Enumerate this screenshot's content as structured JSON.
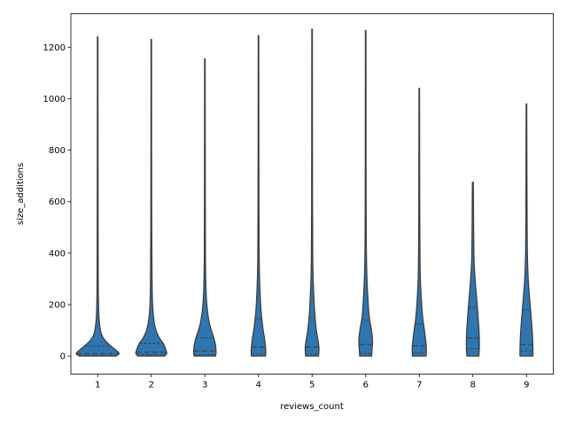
{
  "chart_data": {
    "type": "violin",
    "title": "",
    "xlabel": "reviews_count",
    "ylabel": "size_additions",
    "categories": [
      "1",
      "2",
      "3",
      "4",
      "5",
      "6",
      "7",
      "8",
      "9"
    ],
    "ylim": [
      -70,
      1330
    ],
    "yticks": [
      0,
      200,
      400,
      600,
      800,
      1000,
      1200
    ],
    "ytick_labels": [
      "0",
      "200",
      "400",
      "600",
      "800",
      "1000",
      "1200"
    ],
    "grid": false,
    "inner": "quartile",
    "cut": 0,
    "color": "#2f75b0",
    "edge_color": "#3f3f3f",
    "violins": [
      {
        "category": "1",
        "min": 0,
        "max": 1240,
        "q1": 3,
        "median": 10,
        "q3": 38,
        "profile": [
          [
            0,
            0.85
          ],
          [
            10,
            1.0
          ],
          [
            25,
            0.82
          ],
          [
            40,
            0.6
          ],
          [
            60,
            0.35
          ],
          [
            80,
            0.2
          ],
          [
            100,
            0.13
          ],
          [
            140,
            0.07
          ],
          [
            200,
            0.04
          ],
          [
            300,
            0.025
          ],
          [
            500,
            0.02
          ],
          [
            800,
            0.015
          ],
          [
            1240,
            0.012
          ]
        ]
      },
      {
        "category": "2",
        "min": 0,
        "max": 1230,
        "q1": 5,
        "median": 15,
        "q3": 50,
        "profile": [
          [
            0,
            0.62
          ],
          [
            10,
            0.72
          ],
          [
            25,
            0.68
          ],
          [
            50,
            0.55
          ],
          [
            70,
            0.38
          ],
          [
            100,
            0.22
          ],
          [
            140,
            0.12
          ],
          [
            200,
            0.06
          ],
          [
            300,
            0.035
          ],
          [
            500,
            0.02
          ],
          [
            800,
            0.015
          ],
          [
            1230,
            0.012
          ]
        ]
      },
      {
        "category": "3",
        "min": 0,
        "max": 1155,
        "q1": 5,
        "median": 20,
        "q3": 70,
        "profile": [
          [
            0,
            0.5
          ],
          [
            15,
            0.52
          ],
          [
            40,
            0.5
          ],
          [
            70,
            0.42
          ],
          [
            100,
            0.3
          ],
          [
            140,
            0.18
          ],
          [
            200,
            0.09
          ],
          [
            280,
            0.045
          ],
          [
            400,
            0.025
          ],
          [
            700,
            0.018
          ],
          [
            1155,
            0.012
          ]
        ]
      },
      {
        "category": "4",
        "min": 0,
        "max": 1245,
        "q1": 8,
        "median": 35,
        "q3": 145,
        "profile": [
          [
            0,
            0.33
          ],
          [
            20,
            0.34
          ],
          [
            40,
            0.32
          ],
          [
            70,
            0.28
          ],
          [
            100,
            0.22
          ],
          [
            150,
            0.15
          ],
          [
            200,
            0.1
          ],
          [
            300,
            0.05
          ],
          [
            400,
            0.03
          ],
          [
            600,
            0.02
          ],
          [
            1000,
            0.015
          ],
          [
            1245,
            0.012
          ]
        ]
      },
      {
        "category": "5",
        "min": 0,
        "max": 1270,
        "q1": 8,
        "median": 35,
        "q3": 150,
        "profile": [
          [
            0,
            0.3
          ],
          [
            30,
            0.32
          ],
          [
            60,
            0.28
          ],
          [
            100,
            0.2
          ],
          [
            150,
            0.14
          ],
          [
            200,
            0.1
          ],
          [
            300,
            0.05
          ],
          [
            400,
            0.03
          ],
          [
            600,
            0.02
          ],
          [
            1000,
            0.015
          ],
          [
            1270,
            0.012
          ]
        ]
      },
      {
        "category": "6",
        "min": 0,
        "max": 1265,
        "q1": 10,
        "median": 45,
        "q3": 140,
        "profile": [
          [
            0,
            0.28
          ],
          [
            30,
            0.3
          ],
          [
            60,
            0.32
          ],
          [
            100,
            0.27
          ],
          [
            150,
            0.17
          ],
          [
            200,
            0.12
          ],
          [
            300,
            0.06
          ],
          [
            420,
            0.03
          ],
          [
            600,
            0.02
          ],
          [
            1000,
            0.015
          ],
          [
            1265,
            0.012
          ]
        ]
      },
      {
        "category": "7",
        "min": 0,
        "max": 1040,
        "q1": 12,
        "median": 40,
        "q3": 125,
        "profile": [
          [
            0,
            0.32
          ],
          [
            30,
            0.33
          ],
          [
            60,
            0.3
          ],
          [
            100,
            0.24
          ],
          [
            150,
            0.16
          ],
          [
            200,
            0.11
          ],
          [
            300,
            0.05
          ],
          [
            420,
            0.03
          ],
          [
            600,
            0.02
          ],
          [
            1040,
            0.012
          ]
        ]
      },
      {
        "category": "8",
        "min": 0,
        "max": 675,
        "q1": 30,
        "median": 70,
        "q3": 190,
        "profile": [
          [
            0,
            0.28
          ],
          [
            30,
            0.3
          ],
          [
            70,
            0.3
          ],
          [
            120,
            0.27
          ],
          [
            200,
            0.2
          ],
          [
            280,
            0.12
          ],
          [
            360,
            0.06
          ],
          [
            450,
            0.04
          ],
          [
            550,
            0.03
          ],
          [
            640,
            0.025
          ],
          [
            675,
            0.02
          ]
        ]
      },
      {
        "category": "9",
        "min": 0,
        "max": 980,
        "q1": 20,
        "median": 45,
        "q3": 180,
        "profile": [
          [
            0,
            0.3
          ],
          [
            30,
            0.3
          ],
          [
            80,
            0.28
          ],
          [
            150,
            0.22
          ],
          [
            220,
            0.15
          ],
          [
            300,
            0.08
          ],
          [
            400,
            0.04
          ],
          [
            600,
            0.025
          ],
          [
            800,
            0.018
          ],
          [
            980,
            0.012
          ]
        ]
      }
    ]
  }
}
